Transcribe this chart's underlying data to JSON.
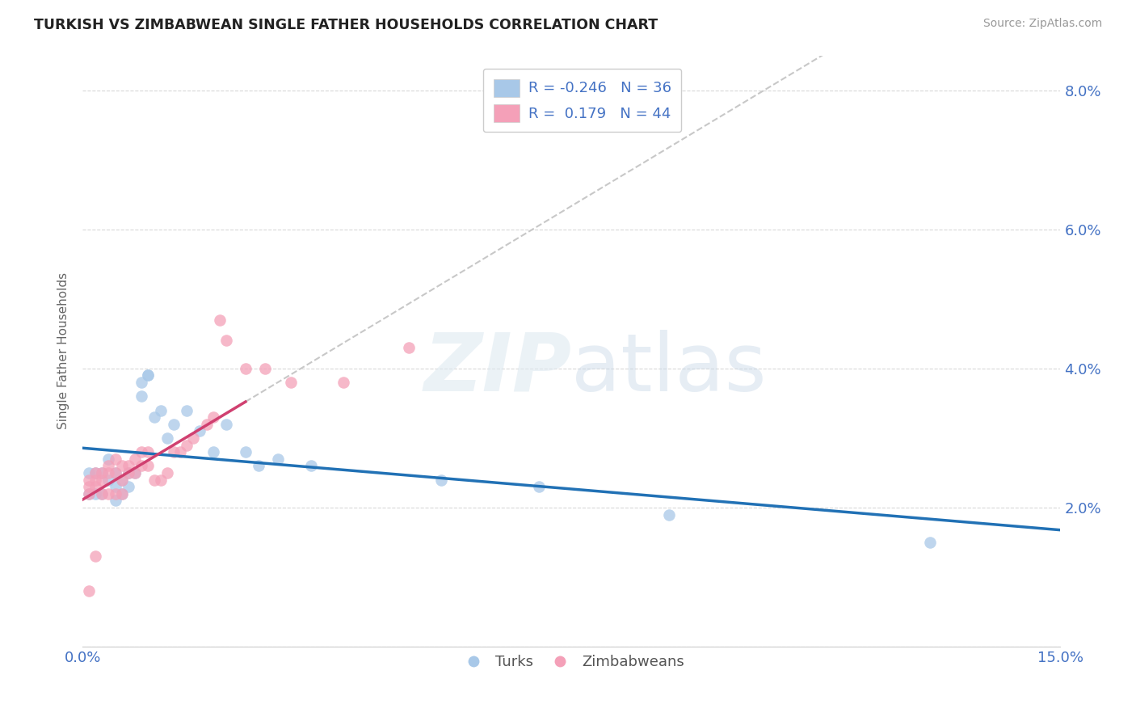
{
  "title": "TURKISH VS ZIMBABWEAN SINGLE FATHER HOUSEHOLDS CORRELATION CHART",
  "source": "Source: ZipAtlas.com",
  "ylabel": "Single Father Households",
  "xlim": [
    0.0,
    0.15
  ],
  "ylim": [
    0.0,
    0.085
  ],
  "blue_color": "#a8c8e8",
  "pink_color": "#f4a0b8",
  "trend_blue": "#2171b5",
  "trend_pink": "#d04070",
  "trend_dashed_color": "#c8c8c8",
  "R_blue": -0.246,
  "N_blue": 36,
  "R_pink": 0.179,
  "N_pink": 44,
  "turks_x": [
    0.001,
    0.001,
    0.002,
    0.002,
    0.003,
    0.003,
    0.004,
    0.004,
    0.005,
    0.005,
    0.005,
    0.006,
    0.006,
    0.007,
    0.007,
    0.008,
    0.009,
    0.009,
    0.01,
    0.01,
    0.011,
    0.012,
    0.013,
    0.014,
    0.016,
    0.018,
    0.02,
    0.022,
    0.025,
    0.027,
    0.03,
    0.035,
    0.055,
    0.07,
    0.09,
    0.13
  ],
  "turks_y": [
    0.025,
    0.022,
    0.025,
    0.022,
    0.025,
    0.022,
    0.027,
    0.024,
    0.025,
    0.023,
    0.021,
    0.024,
    0.022,
    0.025,
    0.023,
    0.025,
    0.038,
    0.036,
    0.039,
    0.039,
    0.033,
    0.034,
    0.03,
    0.032,
    0.034,
    0.031,
    0.028,
    0.032,
    0.028,
    0.026,
    0.027,
    0.026,
    0.024,
    0.023,
    0.019,
    0.015
  ],
  "zims_x": [
    0.001,
    0.001,
    0.001,
    0.001,
    0.002,
    0.002,
    0.002,
    0.002,
    0.003,
    0.003,
    0.003,
    0.004,
    0.004,
    0.004,
    0.005,
    0.005,
    0.005,
    0.006,
    0.006,
    0.006,
    0.007,
    0.007,
    0.008,
    0.008,
    0.009,
    0.009,
    0.01,
    0.01,
    0.011,
    0.012,
    0.013,
    0.014,
    0.015,
    0.016,
    0.017,
    0.019,
    0.02,
    0.021,
    0.022,
    0.025,
    0.028,
    0.032,
    0.04,
    0.05
  ],
  "zims_y": [
    0.024,
    0.023,
    0.022,
    0.008,
    0.025,
    0.024,
    0.023,
    0.013,
    0.025,
    0.024,
    0.022,
    0.026,
    0.025,
    0.022,
    0.027,
    0.025,
    0.022,
    0.026,
    0.024,
    0.022,
    0.026,
    0.025,
    0.027,
    0.025,
    0.028,
    0.026,
    0.028,
    0.026,
    0.024,
    0.024,
    0.025,
    0.028,
    0.028,
    0.029,
    0.03,
    0.032,
    0.033,
    0.047,
    0.044,
    0.04,
    0.04,
    0.038,
    0.038,
    0.043
  ]
}
